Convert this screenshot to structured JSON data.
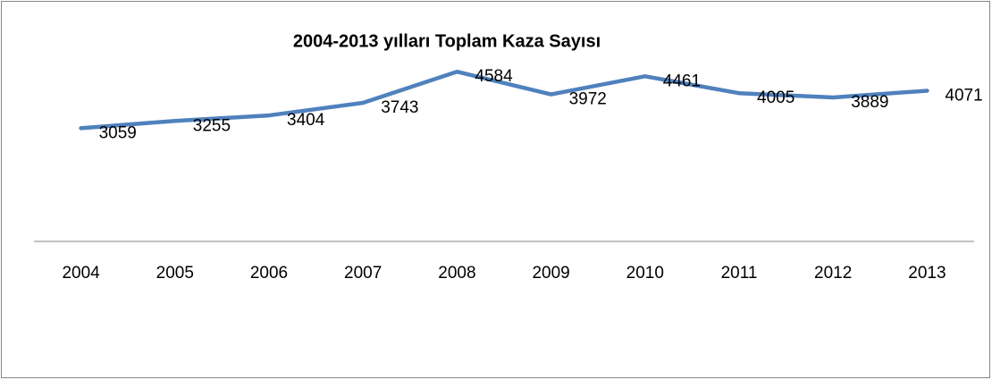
{
  "chart_data": {
    "type": "line",
    "title": "2004-2013 yılları Toplam  Kaza Sayısı",
    "categories": [
      "2004",
      "2005",
      "2006",
      "2007",
      "2008",
      "2009",
      "2010",
      "2011",
      "2012",
      "2013"
    ],
    "values": [
      3059,
      3255,
      3404,
      3743,
      4584,
      3972,
      4461,
      4005,
      3889,
      4071
    ],
    "color": "#4f81bd",
    "ylim": [
      0,
      5000
    ]
  }
}
